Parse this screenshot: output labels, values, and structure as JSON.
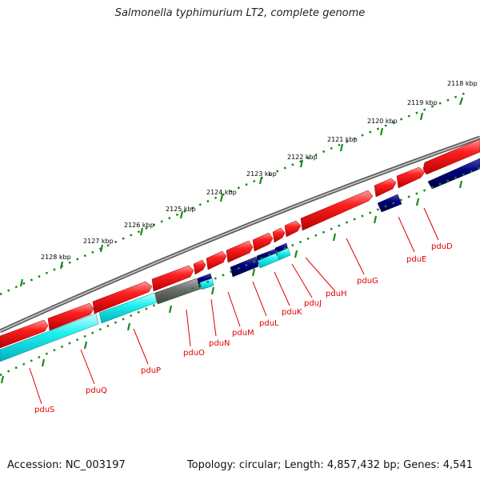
{
  "title": "Salmonella typhimurium LT2, complete genome",
  "footer": {
    "accession": "Accession: NC_003197",
    "summary": "Topology: circular; Length: 4,857,432 bp; Genes: 4,541"
  },
  "ruler_labels": [
    "2118 kbp",
    "2119 kbp",
    "2120 kbp",
    "2121 kbp",
    "2122 kbp",
    "2123 kbp",
    "2124 kbp",
    "2125 kbp",
    "2126 kbp",
    "2127 kbp",
    "2128 kbp"
  ],
  "gene_labels": [
    "pduD",
    "pduE",
    "pduG",
    "pduH",
    "pduJ",
    "pduK",
    "pduL",
    "pduM",
    "pduN",
    "pduO",
    "pduP",
    "pduQ",
    "pduS"
  ],
  "colors": {
    "forward_cds": "#ff0000",
    "reverse_cds": "#00007a",
    "rna": "#00ffff",
    "other": "#707070",
    "backbone": "#808080",
    "ticks": "#008000",
    "label_text": "#e00000"
  }
}
